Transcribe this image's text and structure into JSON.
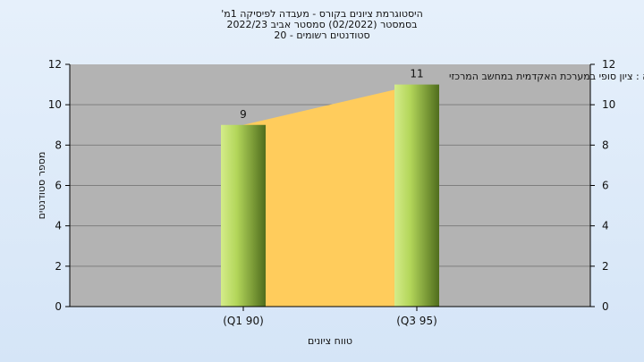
{
  "title": {
    "line1": "היסטוגרמת ציונים בקורס - מעבדה לפיסיקה 1מ'",
    "line2": "בסמסטר (02/2022) סמסטר אביב 2022/23",
    "line3": "סטודנטים רשומים - 20"
  },
  "chart_data": {
    "type": "bar",
    "subtitle": "במשוקלה : ציון סופי במערכת האקדמית במחשב המרכזי",
    "categories": [
      "(Q1 90)",
      "(Q3 95)"
    ],
    "values": [
      9,
      11
    ],
    "data_labels": [
      "9",
      "11"
    ],
    "xlabel": "טווח ציונים",
    "ylabel": "מספר סטודנטים",
    "ylim": [
      0,
      12
    ],
    "yticks": [
      "0",
      "2",
      "4",
      "6",
      "8",
      "10",
      "12"
    ],
    "grid": true,
    "colors": {
      "plot_bg": "#b3b3b3",
      "area_fill": "#ffcc5c",
      "bar_light": "#c8e37a",
      "bar_dark": "#5b7a25",
      "grid": "#7f7f7f"
    }
  }
}
